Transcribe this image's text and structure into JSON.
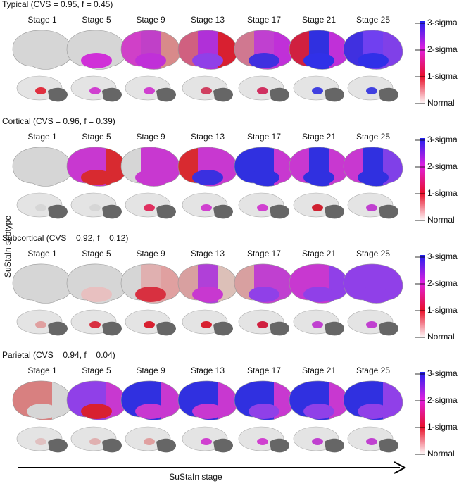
{
  "y_label": "SuStaIn subtype",
  "x_label": "SuStaIn stage",
  "colorbar": {
    "labels": [
      "3-sigma",
      "2-sigma",
      "1-sigma",
      "Normal"
    ],
    "colors": [
      "#ffffff",
      "#e8102a",
      "#e020e0",
      "#2020f0"
    ]
  },
  "panels": [
    {
      "title": "Typical (CVS = 0.95, f = 0.45)",
      "stages": [
        {
          "label": "Stage 1",
          "colors": [
            "#d6d6d6",
            "#d6d6d6",
            "#d6d6d6",
            "#d6d6d6",
            "#e03040"
          ]
        },
        {
          "label": "Stage 5",
          "colors": [
            "#d6d6d6",
            "#d6d6d6",
            "#d6d6d6",
            "#d030d8",
            "#d040d0"
          ]
        },
        {
          "label": "Stage 9",
          "colors": [
            "#d040c8",
            "#c040c8",
            "#d88a8a",
            "#c030d8",
            "#d040d0"
          ]
        },
        {
          "label": "Stage 13",
          "colors": [
            "#d06080",
            "#b030d8",
            "#d82030",
            "#9040e8",
            "#d04060"
          ]
        },
        {
          "label": "Stage 17",
          "colors": [
            "#d07890",
            "#c040d0",
            "#c030d8",
            "#4030e0",
            "#d03060"
          ]
        },
        {
          "label": "Stage 21",
          "colors": [
            "#d02040",
            "#3030e0",
            "#c030d8",
            "#3030e8",
            "#4040e0"
          ]
        },
        {
          "label": "Stage 25",
          "colors": [
            "#4030e0",
            "#7040f0",
            "#8040e8",
            "#3030e8",
            "#4040e0"
          ]
        }
      ]
    },
    {
      "title": "Cortical (CVS = 0.96, f = 0.39)",
      "stages": [
        {
          "label": "Stage 1",
          "colors": [
            "#d6d6d6",
            "#d6d6d6",
            "#d6d6d6",
            "#d6d6d6",
            "#d6d6d6"
          ]
        },
        {
          "label": "Stage 5",
          "colors": [
            "#c838d0",
            "#c838d0",
            "#d82a30",
            "#d82a30",
            "#d6d6d6"
          ]
        },
        {
          "label": "Stage 9",
          "colors": [
            "#d6d6d6",
            "#c838d0",
            "#c838d0",
            "#c838d0",
            "#e03060"
          ]
        },
        {
          "label": "Stage 13",
          "colors": [
            "#d82a30",
            "#c838d0",
            "#c838d0",
            "#3a30e0",
            "#d040d0"
          ]
        },
        {
          "label": "Stage 17",
          "colors": [
            "#3030e0",
            "#3030e0",
            "#c838d0",
            "#3030e0",
            "#d040d0"
          ]
        },
        {
          "label": "Stage 21",
          "colors": [
            "#c838d0",
            "#3030e0",
            "#c838d0",
            "#3030e0",
            "#d02030"
          ]
        },
        {
          "label": "Stage 25",
          "colors": [
            "#c838d0",
            "#3030e0",
            "#8040e8",
            "#3030e0",
            "#c040d0"
          ]
        }
      ]
    },
    {
      "title": "Subcortical (CVS = 0.92, f = 0.12)",
      "stages": [
        {
          "label": "Stage 1",
          "colors": [
            "#d6d6d6",
            "#d6d6d6",
            "#d6d6d6",
            "#d6d6d6",
            "#e0a0a0"
          ]
        },
        {
          "label": "Stage 5",
          "colors": [
            "#d6d6d6",
            "#d6d6d6",
            "#d6d6d6",
            "#e8c0c0",
            "#d83040"
          ]
        },
        {
          "label": "Stage 9",
          "colors": [
            "#d6d6d6",
            "#e0b0b0",
            "#e0a0a0",
            "#d83040",
            "#d82030"
          ]
        },
        {
          "label": "Stage 13",
          "colors": [
            "#d8a0a0",
            "#b040d8",
            "#dcc0b8",
            "#c838d0",
            "#d82030"
          ]
        },
        {
          "label": "Stage 17",
          "colors": [
            "#d8a0a0",
            "#c040d0",
            "#c040d0",
            "#9040e8",
            "#d02040"
          ]
        },
        {
          "label": "Stage 21",
          "colors": [
            "#c838d0",
            "#c838d0",
            "#9040e8",
            "#9040e8",
            "#c040d0"
          ]
        },
        {
          "label": "Stage 25",
          "colors": [
            "#9040e8",
            "#9040e8",
            "#9040e8",
            "#9040e8",
            "#c040d0"
          ]
        }
      ]
    },
    {
      "title": "Parietal (CVS = 0.94, f = 0.04)",
      "stages": [
        {
          "label": "Stage 1",
          "colors": [
            "#d88080",
            "#d88080",
            "#d6d6d6",
            "#d6d6d6",
            "#e0c0c0"
          ]
        },
        {
          "label": "Stage 5",
          "colors": [
            "#9040e8",
            "#9040e8",
            "#c838d0",
            "#d82030",
            "#e0b0b0"
          ]
        },
        {
          "label": "Stage 9",
          "colors": [
            "#3030e0",
            "#3030e0",
            "#c838d0",
            "#c838d0",
            "#e0a0a0"
          ]
        },
        {
          "label": "Stage 13",
          "colors": [
            "#3030e0",
            "#3030e0",
            "#c838d0",
            "#c838d0",
            "#d040d0"
          ]
        },
        {
          "label": "Stage 17",
          "colors": [
            "#3030e0",
            "#3030e0",
            "#c838d0",
            "#9040e8",
            "#d040d0"
          ]
        },
        {
          "label": "Stage 21",
          "colors": [
            "#3030e0",
            "#3030e0",
            "#c838d0",
            "#9040e8",
            "#c040d0"
          ]
        },
        {
          "label": "Stage 25",
          "colors": [
            "#3030e0",
            "#3030e0",
            "#9040e8",
            "#9040e8",
            "#c040d0"
          ]
        }
      ]
    }
  ]
}
